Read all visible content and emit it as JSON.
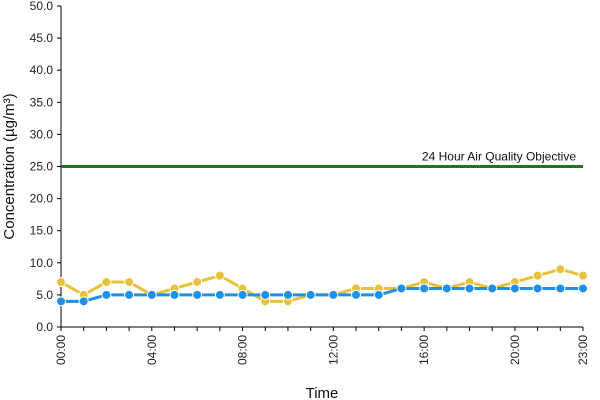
{
  "chart_data": {
    "type": "line",
    "title": "",
    "xlabel": "Time",
    "ylabel": "Concentration (µg/m³)",
    "ylim": [
      0,
      50
    ],
    "yticks": [
      "0.0",
      "5.0",
      "10.0",
      "15.0",
      "20.0",
      "25.0",
      "30.0",
      "35.0",
      "40.0",
      "45.0",
      "50.0"
    ],
    "x": [
      "00:00",
      "01:00",
      "02:00",
      "03:00",
      "04:00",
      "05:00",
      "06:00",
      "07:00",
      "08:00",
      "09:00",
      "10:00",
      "11:00",
      "12:00",
      "13:00",
      "14:00",
      "15:00",
      "16:00",
      "17:00",
      "18:00",
      "19:00",
      "20:00",
      "21:00",
      "22:00",
      "23:00"
    ],
    "xtick_labels": [
      "00:00",
      "04:00",
      "08:00",
      "12:00",
      "16:00",
      "20:00",
      "23:00"
    ],
    "xtick_indices": [
      0,
      4,
      8,
      12,
      16,
      20,
      23
    ],
    "series": [
      {
        "color": "#e8c23a",
        "values": [
          7,
          5,
          7,
          7,
          5,
          6,
          7,
          8,
          6,
          4,
          4,
          5,
          5,
          6,
          6,
          6,
          7,
          6,
          7,
          6,
          7,
          8,
          9,
          8
        ]
      },
      {
        "color": "#1e90e8",
        "values": [
          4,
          4,
          5,
          5,
          5,
          5,
          5,
          5,
          5,
          5,
          5,
          5,
          5,
          5,
          5,
          6,
          6,
          6,
          6,
          6,
          6,
          6,
          6,
          6
        ]
      }
    ],
    "reference_line": {
      "value": 25,
      "label": "24 Hour Air Quality Objective",
      "color": "#1a7a1a"
    },
    "grid": false,
    "legend": "none"
  }
}
